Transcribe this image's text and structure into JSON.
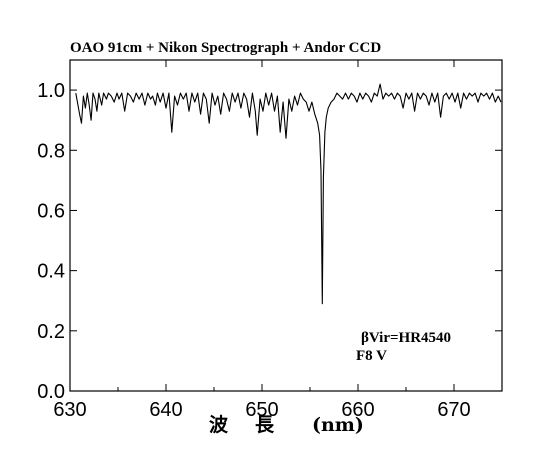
{
  "chart_data": {
    "type": "line",
    "title": "OAO 91cm + Nikon Spectrograph + Andor CCD",
    "xlabel_chars": [
      "波",
      "長",
      "(nm)"
    ],
    "ylabel": "",
    "xlim": [
      630,
      675
    ],
    "ylim": [
      0.0,
      1.1
    ],
    "xticks": [
      630,
      640,
      650,
      660,
      670
    ],
    "yticks": [
      0.0,
      0.2,
      0.4,
      0.6,
      0.8,
      1.0
    ],
    "xtick_labels": [
      "630",
      "640",
      "650",
      "660",
      "670"
    ],
    "ytick_labels": [
      "0.0",
      "0.2",
      "0.4",
      "0.6",
      "0.8",
      "1.0"
    ],
    "grid": false,
    "annotations": [
      "βVir=HR4540",
      "F8 V"
    ],
    "series": [
      {
        "x": [
          630.6,
          631.0,
          631.2,
          631.4,
          631.6,
          631.8,
          632.0,
          632.2,
          632.4,
          632.6,
          632.8,
          633.0,
          633.3,
          633.5,
          633.8,
          634.0,
          634.3,
          634.6,
          634.9,
          635.1,
          635.4,
          635.7,
          636.0,
          636.3,
          636.6,
          636.9,
          637.2,
          637.5,
          637.8,
          638.1,
          638.4,
          638.6,
          638.9,
          639.1,
          639.4,
          639.7,
          640.0,
          640.3,
          640.6,
          640.9,
          641.2,
          641.5,
          641.8,
          642.1,
          642.4,
          642.7,
          643.0,
          643.3,
          643.6,
          643.9,
          644.2,
          644.5,
          644.8,
          645.1,
          645.4,
          645.7,
          646.0,
          646.3,
          646.6,
          646.9,
          647.2,
          647.5,
          647.8,
          648.1,
          648.4,
          648.7,
          649.0,
          649.3,
          649.5,
          649.8,
          650.1,
          650.4,
          650.7,
          651.0,
          651.3,
          651.6,
          651.9,
          652.2,
          652.5,
          652.8,
          653.1,
          653.4,
          653.7,
          654.0,
          654.3,
          654.6,
          654.9,
          655.2,
          655.5,
          655.8,
          656.0,
          656.15,
          656.28,
          656.4,
          656.55,
          656.7,
          656.9,
          657.2,
          657.5,
          657.8,
          658.1,
          658.4,
          658.7,
          659.0,
          659.3,
          659.6,
          659.9,
          660.2,
          660.5,
          660.8,
          661.1,
          661.4,
          661.7,
          662.0,
          662.3,
          662.6,
          662.9,
          663.2,
          663.5,
          663.8,
          664.1,
          664.4,
          664.7,
          665.0,
          665.3,
          665.6,
          665.9,
          666.2,
          666.5,
          666.8,
          667.1,
          667.4,
          667.7,
          668.0,
          668.3,
          668.6,
          668.9,
          669.2,
          669.5,
          669.8,
          670.1,
          670.4,
          670.7,
          671.0,
          671.3,
          671.6,
          671.9,
          672.2,
          672.5,
          672.8,
          673.1,
          673.4,
          673.7,
          674.0,
          674.3,
          674.6,
          674.9
        ],
        "y": [
          0.99,
          0.92,
          0.89,
          0.98,
          0.94,
          0.99,
          0.95,
          0.9,
          0.99,
          0.97,
          0.93,
          0.99,
          0.95,
          0.99,
          0.97,
          0.99,
          0.98,
          0.96,
          0.99,
          0.97,
          0.99,
          0.93,
          0.99,
          0.98,
          0.96,
          0.99,
          0.97,
          0.99,
          0.95,
          0.99,
          0.97,
          0.98,
          0.95,
          0.99,
          0.96,
          0.99,
          0.94,
          0.99,
          0.86,
          0.98,
          0.95,
          0.99,
          0.97,
          0.99,
          0.93,
          0.99,
          0.96,
          0.99,
          0.92,
          0.99,
          0.97,
          0.89,
          0.99,
          0.95,
          0.98,
          0.92,
          0.99,
          0.97,
          0.93,
          0.99,
          0.96,
          0.99,
          0.94,
          0.99,
          0.97,
          0.91,
          0.99,
          0.93,
          0.85,
          0.97,
          0.93,
          0.99,
          0.95,
          0.99,
          0.93,
          0.98,
          0.86,
          0.96,
          0.84,
          0.97,
          0.93,
          0.98,
          0.95,
          0.99,
          0.97,
          0.96,
          0.93,
          0.96,
          0.92,
          0.89,
          0.85,
          0.73,
          0.29,
          0.71,
          0.86,
          0.91,
          0.94,
          0.96,
          0.97,
          0.99,
          0.98,
          0.97,
          0.99,
          0.97,
          0.99,
          0.98,
          0.96,
          0.99,
          0.97,
          0.99,
          0.98,
          0.96,
          0.99,
          0.98,
          1.02,
          0.97,
          0.99,
          0.98,
          0.99,
          0.97,
          0.99,
          0.98,
          0.94,
          0.99,
          0.97,
          0.99,
          0.93,
          0.99,
          0.97,
          0.99,
          0.98,
          0.95,
          0.99,
          0.96,
          0.99,
          0.91,
          0.98,
          0.99,
          0.97,
          0.99,
          0.96,
          0.99,
          0.94,
          0.99,
          0.97,
          0.99,
          0.98,
          0.99,
          0.96,
          0.99,
          0.98,
          0.99,
          0.97,
          0.99,
          0.96,
          0.98,
          0.96
        ]
      }
    ]
  }
}
